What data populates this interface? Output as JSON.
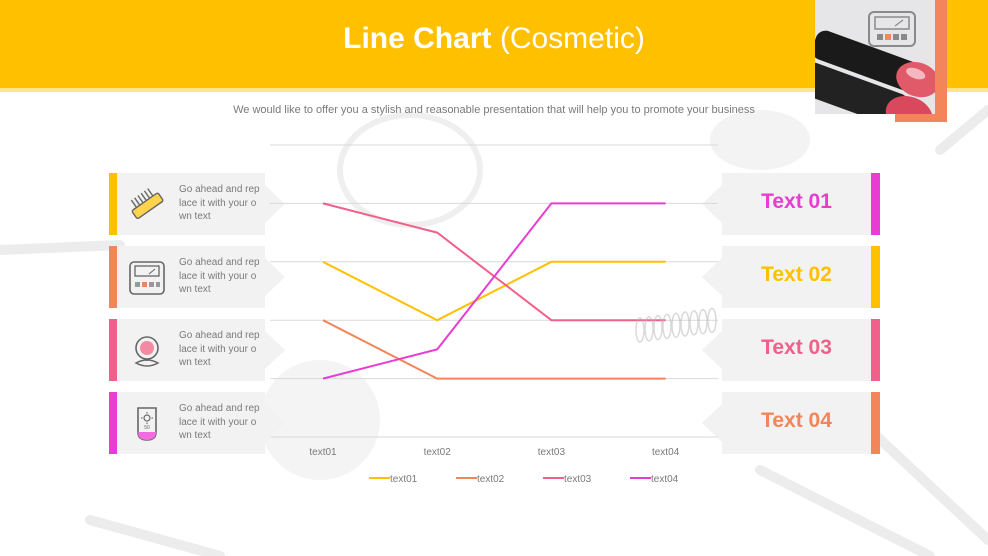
{
  "header": {
    "title_bold": "Line Chart",
    "title_rest": "(Cosmetic)",
    "subtitle": "We would like to offer you a stylish and reasonable presentation that will help you to promote your business"
  },
  "left_cards": [
    {
      "text": "Go ahead and replace it with your own text",
      "icon": "comb-icon",
      "color": "#FFC000"
    },
    {
      "text": "Go ahead and replace it with your own text",
      "icon": "eyeshadow-palette-icon",
      "color": "#F2855A"
    },
    {
      "text": "Go ahead and replace it with your own text",
      "icon": "compact-mirror-icon",
      "color": "#F0608A"
    },
    {
      "text": "Go ahead and replace it with your own text",
      "icon": "sunscreen-icon",
      "color": "#E83CD3"
    }
  ],
  "right_cards": [
    {
      "label": "Text 01",
      "text_color": "#E83CD3",
      "bar_color": "#E83CD3"
    },
    {
      "label": "Text 02",
      "text_color": "#FFC000",
      "bar_color": "#FFC000"
    },
    {
      "label": "Text 03",
      "text_color": "#F0608A",
      "bar_color": "#F0608A"
    },
    {
      "label": "Text 04",
      "text_color": "#F2855A",
      "bar_color": "#F2855A"
    }
  ],
  "chart_data": {
    "type": "line",
    "categories": [
      "text01",
      "text02",
      "text03",
      "text04"
    ],
    "ylim": [
      0,
      5
    ],
    "grid": true,
    "legend": "bottom",
    "series": [
      {
        "name": "text01",
        "values": [
          3,
          2,
          3,
          3
        ],
        "color": "#FFC000"
      },
      {
        "name": "text02",
        "values": [
          2,
          1,
          1,
          1
        ],
        "color": "#F2855A"
      },
      {
        "name": "text03",
        "values": [
          4,
          3.5,
          2,
          2
        ],
        "color": "#F0608A"
      },
      {
        "name": "text04",
        "values": [
          1,
          1.5,
          4,
          4
        ],
        "color": "#E83CD3"
      }
    ]
  }
}
